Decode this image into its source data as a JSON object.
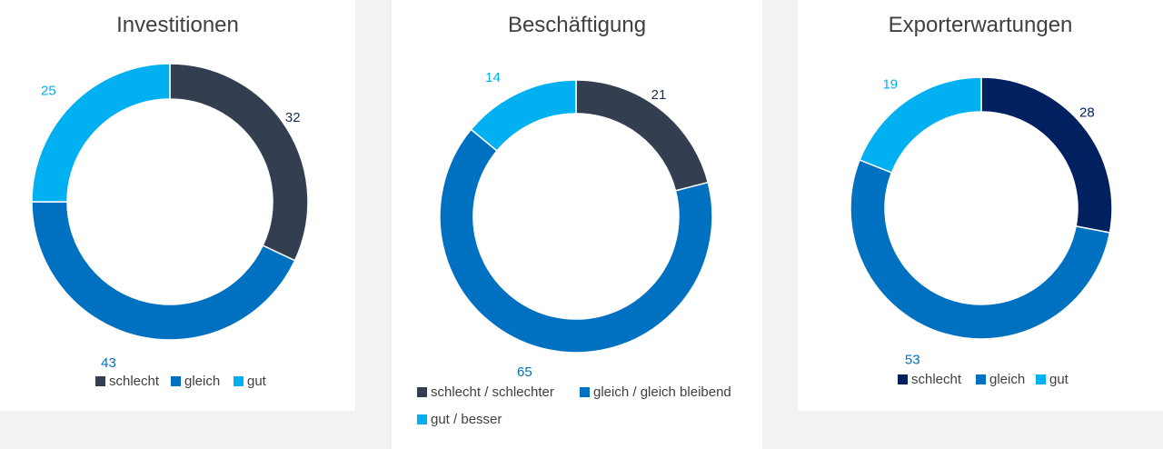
{
  "chart_data": [
    {
      "type": "pie",
      "title": "Investitionen",
      "categories": [
        "schlecht",
        "gleich",
        "gut"
      ],
      "values": [
        32,
        43,
        25
      ],
      "colors": [
        "#333f50",
        "#0070c0",
        "#00b0f0"
      ],
      "label_colors": [
        "#1f2d4f",
        "#0070c0",
        "#00b0f0"
      ],
      "legend": [
        "schlecht",
        "gleich",
        "gut"
      ],
      "legend_position": "bottom"
    },
    {
      "type": "pie",
      "title": "Beschäftigung",
      "categories": [
        "schlecht / schlechter",
        "gleich / gleich bleibend",
        "gut / besser"
      ],
      "values": [
        21,
        65,
        14
      ],
      "colors": [
        "#333f50",
        "#0070c0",
        "#00b0f0"
      ],
      "label_colors": [
        "#1f2d4f",
        "#0070c0",
        "#00b0f0"
      ],
      "legend": [
        "schlecht / schlechter",
        "gleich / gleich bleibend",
        "gut / besser"
      ],
      "legend_position": "bottom"
    },
    {
      "type": "pie",
      "title": "Exporterwartungen",
      "categories": [
        "schlecht",
        "gleich",
        "gut"
      ],
      "values": [
        28,
        53,
        19
      ],
      "colors": [
        "#002060",
        "#0070c0",
        "#00b0f0"
      ],
      "label_colors": [
        "#002060",
        "#0070c0",
        "#00b0f0"
      ],
      "legend": [
        "schlecht",
        "gleich",
        "gut"
      ],
      "legend_position": "bottom"
    }
  ]
}
